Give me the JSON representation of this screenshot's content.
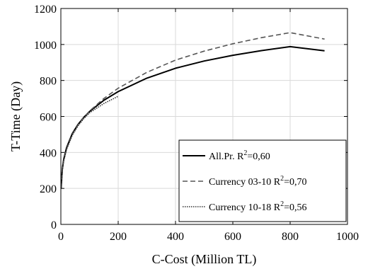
{
  "chart_data": {
    "type": "line",
    "title": "",
    "xlabel": "C-Cost (Million TL)",
    "ylabel": "T-Time (Day)",
    "xlim": [
      0,
      1000
    ],
    "ylim": [
      0,
      1200
    ],
    "xticks": [
      "0",
      "200",
      "400",
      "600",
      "800",
      "1000"
    ],
    "yticks": [
      "0",
      "200",
      "400",
      "600",
      "800",
      "1000",
      "1200"
    ],
    "grid": true,
    "legend_position": "bottom-right",
    "series": [
      {
        "name": "All.Pr. R",
        "legend_sup": "2",
        "legend_tail": "=0,60",
        "style": "solid",
        "color": "#000000",
        "x": [
          1,
          5,
          10,
          20,
          40,
          60,
          80,
          100,
          150,
          200,
          300,
          400,
          500,
          600,
          700,
          800,
          920
        ],
        "y": [
          200,
          306,
          361,
          427,
          505,
          556,
          595,
          627,
          690,
          738,
          813,
          868,
          908,
          940,
          966,
          988,
          965
        ]
      },
      {
        "name": "Currency 03-10 R",
        "legend_sup": "2",
        "legend_tail": "=0,70",
        "style": "dashed",
        "color": "#555555",
        "x": [
          1,
          5,
          10,
          20,
          40,
          60,
          80,
          100,
          150,
          200,
          300,
          400,
          500,
          600,
          700,
          800,
          920
        ],
        "y": [
          205,
          300,
          355,
          420,
          500,
          553,
          594,
          630,
          700,
          757,
          845,
          913,
          963,
          1004,
          1038,
          1066,
          1030
        ]
      },
      {
        "name": "Currency 10-18 R",
        "legend_sup": "2",
        "legend_tail": "=0,56",
        "style": "dotted",
        "color": "#333333",
        "x": [
          1,
          5,
          10,
          20,
          40,
          60,
          80,
          100,
          150,
          200
        ],
        "y": [
          200,
          298,
          352,
          418,
          496,
          548,
          588,
          620,
          672,
          712
        ]
      }
    ]
  }
}
